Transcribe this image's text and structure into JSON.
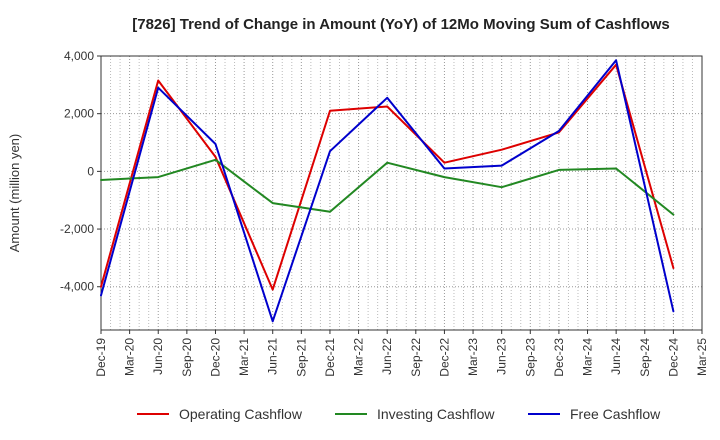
{
  "chart_data": {
    "type": "line",
    "title": "[7826]  Trend of Change in Amount (YoY) of 12Mo Moving Sum of Cashflows",
    "xlabel": "",
    "ylabel": "Amount (million yen)",
    "ylim": [
      -5500,
      4000
    ],
    "yticks": [
      4000,
      2000,
      0,
      -2000,
      -4000
    ],
    "ytick_labels": [
      "4,000",
      "2,000",
      "0",
      "-2,000",
      "-4,000"
    ],
    "categories": [
      "Dec-19",
      "Mar-20",
      "Jun-20",
      "Sep-20",
      "Dec-20",
      "Mar-21",
      "Jun-21",
      "Sep-21",
      "Dec-21",
      "Mar-22",
      "Jun-22",
      "Sep-22",
      "Dec-22",
      "Mar-23",
      "Jun-23",
      "Sep-23",
      "Dec-23",
      "Mar-24",
      "Jun-24",
      "Sep-24",
      "Dec-24",
      "Mar-25"
    ],
    "grid": true,
    "legend_position": "bottom",
    "series": [
      {
        "name": "Operating Cashflow",
        "color": "#dd0000",
        "x": [
          "Dec-19",
          "Jun-20",
          "Dec-20",
          "Jun-21",
          "Dec-21",
          "Jun-22",
          "Dec-22",
          "Jun-23",
          "Dec-23",
          "Jun-24",
          "Dec-24"
        ],
        "values": [
          -4000,
          3150,
          500,
          -4100,
          2100,
          2250,
          300,
          750,
          1350,
          3700,
          -3350
        ]
      },
      {
        "name": "Investing Cashflow",
        "color": "#228822",
        "x": [
          "Dec-19",
          "Jun-20",
          "Dec-20",
          "Jun-21",
          "Dec-21",
          "Jun-22",
          "Dec-22",
          "Jun-23",
          "Dec-23",
          "Jun-24",
          "Dec-24"
        ],
        "values": [
          -300,
          -200,
          400,
          -1100,
          -1400,
          300,
          -200,
          -550,
          50,
          100,
          -1500
        ]
      },
      {
        "name": "Free Cashflow",
        "color": "#0000cc",
        "x": [
          "Dec-19",
          "Jun-20",
          "Dec-20",
          "Jun-21",
          "Dec-21",
          "Jun-22",
          "Dec-22",
          "Jun-23",
          "Dec-23",
          "Jun-24",
          "Dec-24"
        ],
        "values": [
          -4300,
          2900,
          950,
          -5200,
          700,
          2550,
          100,
          200,
          1400,
          3850,
          -4850
        ]
      }
    ]
  }
}
